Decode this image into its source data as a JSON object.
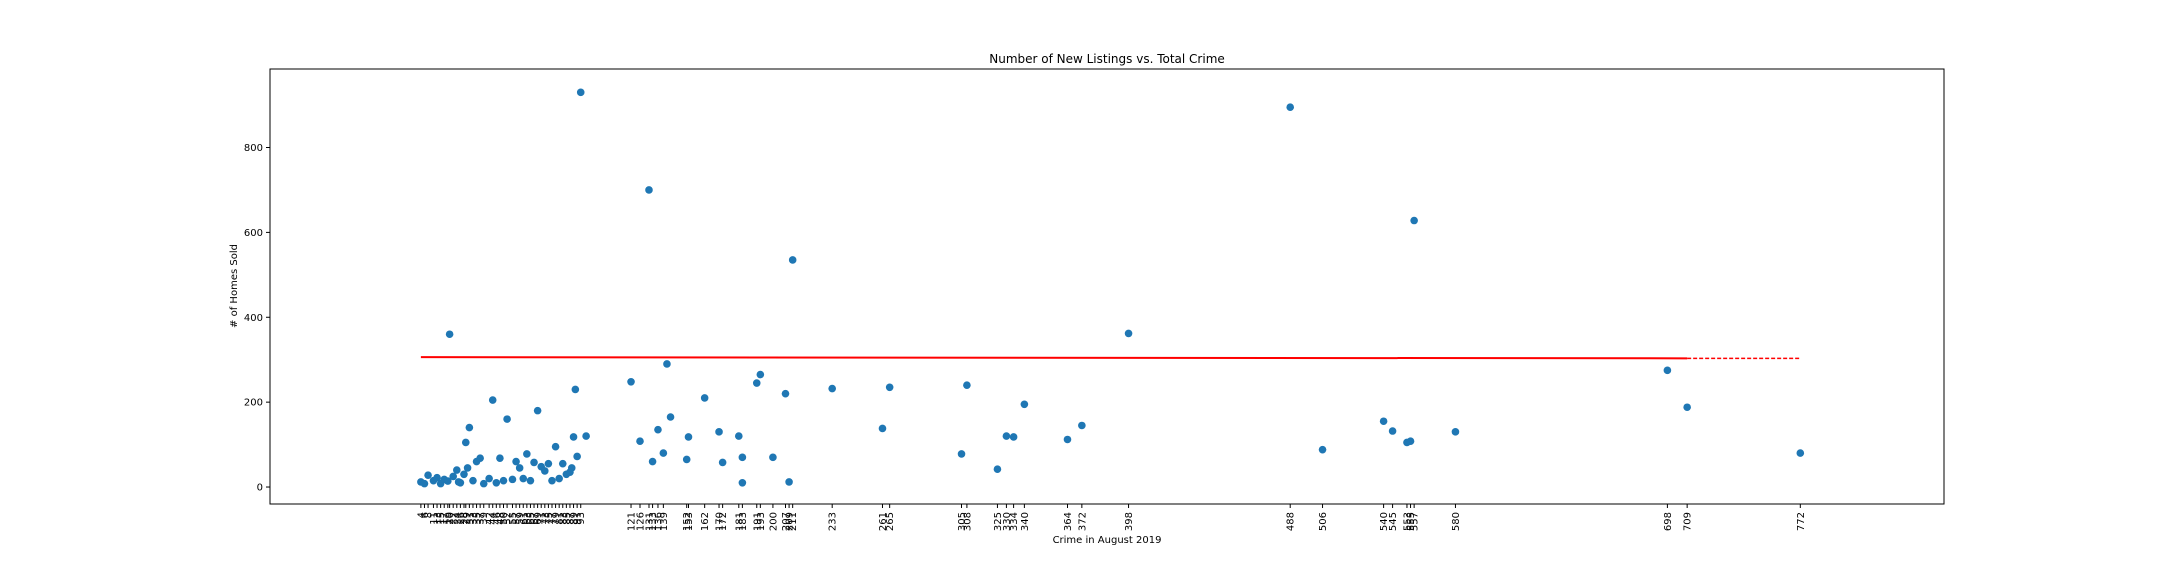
{
  "chart_data": {
    "type": "scatter",
    "title": "Number of New Listings vs. Total Crime",
    "xlabel": "Crime in August 2019",
    "ylabel": "# of Homes Sold",
    "xlim": [
      -80,
      852
    ],
    "ylim": [
      -40,
      985
    ],
    "yticks": [
      0,
      200,
      400,
      600,
      800
    ],
    "xticks": [
      4,
      6,
      8,
      11,
      13,
      15,
      17,
      19,
      20,
      22,
      24,
      26,
      28,
      29,
      31,
      33,
      35,
      37,
      39,
      42,
      44,
      46,
      48,
      50,
      52,
      55,
      57,
      59,
      61,
      63,
      65,
      67,
      69,
      71,
      73,
      75,
      77,
      79,
      81,
      83,
      85,
      87,
      89,
      91,
      93,
      121,
      126,
      131,
      133,
      136,
      139,
      152,
      153,
      162,
      170,
      172,
      181,
      183,
      191,
      193,
      200,
      207,
      209,
      211,
      233,
      261,
      265,
      305,
      308,
      325,
      330,
      334,
      340,
      364,
      372,
      398,
      488,
      506,
      540,
      545,
      553,
      555,
      557,
      580,
      698,
      709,
      772
    ],
    "grid": false,
    "point_color": "#1f77b4",
    "trend_color": "#ff0000",
    "points": [
      {
        "x": 4,
        "y": 12
      },
      {
        "x": 6,
        "y": 8
      },
      {
        "x": 8,
        "y": 28
      },
      {
        "x": 11,
        "y": 15
      },
      {
        "x": 13,
        "y": 22
      },
      {
        "x": 15,
        "y": 8
      },
      {
        "x": 17,
        "y": 18
      },
      {
        "x": 19,
        "y": 14
      },
      {
        "x": 20,
        "y": 360
      },
      {
        "x": 22,
        "y": 25
      },
      {
        "x": 24,
        "y": 40
      },
      {
        "x": 26,
        "y": 10
      },
      {
        "x": 28,
        "y": 30
      },
      {
        "x": 29,
        "y": 105
      },
      {
        "x": 31,
        "y": 140
      },
      {
        "x": 33,
        "y": 15
      },
      {
        "x": 35,
        "y": 60
      },
      {
        "x": 37,
        "y": 68
      },
      {
        "x": 39,
        "y": 8
      },
      {
        "x": 42,
        "y": 20
      },
      {
        "x": 44,
        "y": 205
      },
      {
        "x": 46,
        "y": 10
      },
      {
        "x": 48,
        "y": 68
      },
      {
        "x": 50,
        "y": 15
      },
      {
        "x": 52,
        "y": 160
      },
      {
        "x": 55,
        "y": 18
      },
      {
        "x": 57,
        "y": 60
      },
      {
        "x": 59,
        "y": 45
      },
      {
        "x": 61,
        "y": 20
      },
      {
        "x": 63,
        "y": 78
      },
      {
        "x": 65,
        "y": 15
      },
      {
        "x": 67,
        "y": 58
      },
      {
        "x": 69,
        "y": 180
      },
      {
        "x": 71,
        "y": 48
      },
      {
        "x": 73,
        "y": 38
      },
      {
        "x": 75,
        "y": 55
      },
      {
        "x": 77,
        "y": 15
      },
      {
        "x": 79,
        "y": 95
      },
      {
        "x": 81,
        "y": 20
      },
      {
        "x": 83,
        "y": 55
      },
      {
        "x": 85,
        "y": 30
      },
      {
        "x": 87,
        "y": 35
      },
      {
        "x": 89,
        "y": 118
      },
      {
        "x": 91,
        "y": 72
      },
      {
        "x": 93,
        "y": 930
      },
      {
        "x": 121,
        "y": 248
      },
      {
        "x": 126,
        "y": 108
      },
      {
        "x": 131,
        "y": 700
      },
      {
        "x": 133,
        "y": 60
      },
      {
        "x": 136,
        "y": 135
      },
      {
        "x": 139,
        "y": 80
      },
      {
        "x": 152,
        "y": 65
      },
      {
        "x": 153,
        "y": 118
      },
      {
        "x": 162,
        "y": 210
      },
      {
        "x": 170,
        "y": 130
      },
      {
        "x": 172,
        "y": 58
      },
      {
        "x": 181,
        "y": 120
      },
      {
        "x": 183,
        "y": 70
      },
      {
        "x": 191,
        "y": 245
      },
      {
        "x": 193,
        "y": 265
      },
      {
        "x": 200,
        "y": 70
      },
      {
        "x": 207,
        "y": 220
      },
      {
        "x": 209,
        "y": 12
      },
      {
        "x": 211,
        "y": 535
      },
      {
        "x": 233,
        "y": 232
      },
      {
        "x": 261,
        "y": 138
      },
      {
        "x": 265,
        "y": 235
      },
      {
        "x": 305,
        "y": 78
      },
      {
        "x": 308,
        "y": 240
      },
      {
        "x": 325,
        "y": 42
      },
      {
        "x": 330,
        "y": 120
      },
      {
        "x": 334,
        "y": 118
      },
      {
        "x": 340,
        "y": 195
      },
      {
        "x": 364,
        "y": 112
      },
      {
        "x": 372,
        "y": 145
      },
      {
        "x": 398,
        "y": 362
      },
      {
        "x": 488,
        "y": 895
      },
      {
        "x": 506,
        "y": 88
      },
      {
        "x": 540,
        "y": 155
      },
      {
        "x": 545,
        "y": 132
      },
      {
        "x": 553,
        "y": 105
      },
      {
        "x": 555,
        "y": 108
      },
      {
        "x": 557,
        "y": 628
      },
      {
        "x": 580,
        "y": 130
      },
      {
        "x": 698,
        "y": 275
      },
      {
        "x": 709,
        "y": 188
      },
      {
        "x": 772,
        "y": 80
      },
      {
        "x": 96,
        "y": 120
      },
      {
        "x": 90,
        "y": 230
      },
      {
        "x": 88,
        "y": 45
      },
      {
        "x": 141,
        "y": 290
      },
      {
        "x": 143,
        "y": 165
      },
      {
        "x": 183,
        "y": 10
      },
      {
        "x": 30,
        "y": 45
      },
      {
        "x": 25,
        "y": 12
      }
    ],
    "trend_line": {
      "x": [
        4,
        772
      ],
      "y": [
        306,
        303
      ]
    }
  }
}
